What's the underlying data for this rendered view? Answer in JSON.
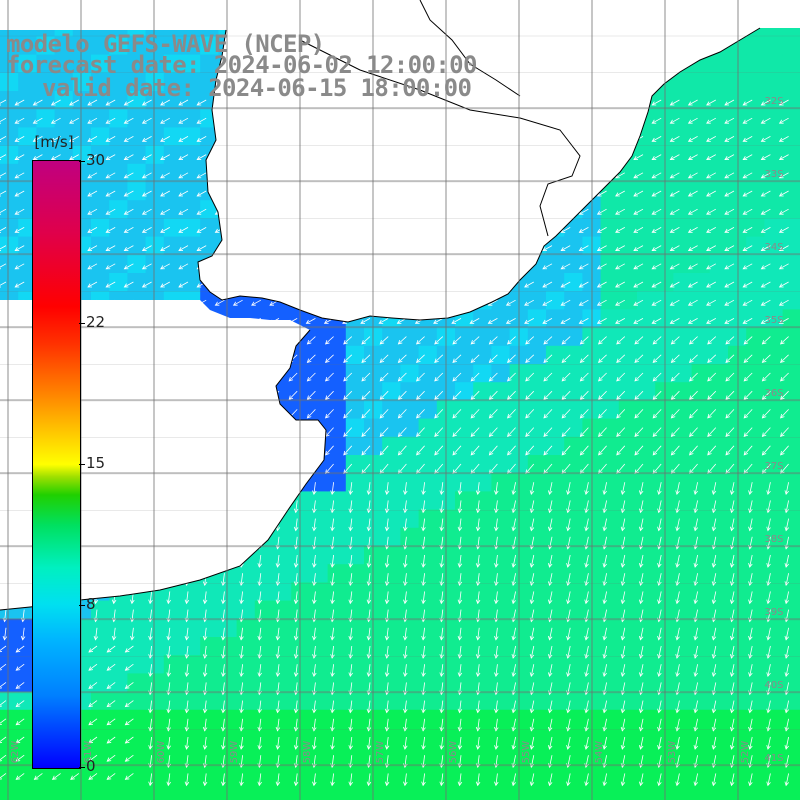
{
  "header": {
    "line1": "modelo GEFS-WAVE (NCEP)",
    "line2": "forecast date: 2024-06-02 12:00:00",
    "line3": "valid date: 2024-06-15 18:00:00"
  },
  "colorbar": {
    "unit": "[m/s]",
    "ticks": [
      {
        "label": "30",
        "value": 30
      },
      {
        "label": "22",
        "value": 22
      },
      {
        "label": "15",
        "value": 15
      },
      {
        "label": "8",
        "value": 8
      },
      {
        "label": "0",
        "value": 0
      }
    ],
    "min": 0,
    "max": 30
  },
  "map": {
    "lat_labels": [
      "32S",
      "33S",
      "34S",
      "35S",
      "36S",
      "37S",
      "38S",
      "39S",
      "40S",
      "41S"
    ],
    "lon_labels": [
      "62W",
      "61W",
      "60W",
      "59W",
      "58W",
      "57W",
      "56W",
      "55W",
      "54W",
      "53W",
      "52W"
    ],
    "colors": {
      "land": "#ffffff",
      "coast": "#000000",
      "grid": "#707070",
      "arrows": "#ffffff",
      "label": "#8a8a8a"
    }
  }
}
